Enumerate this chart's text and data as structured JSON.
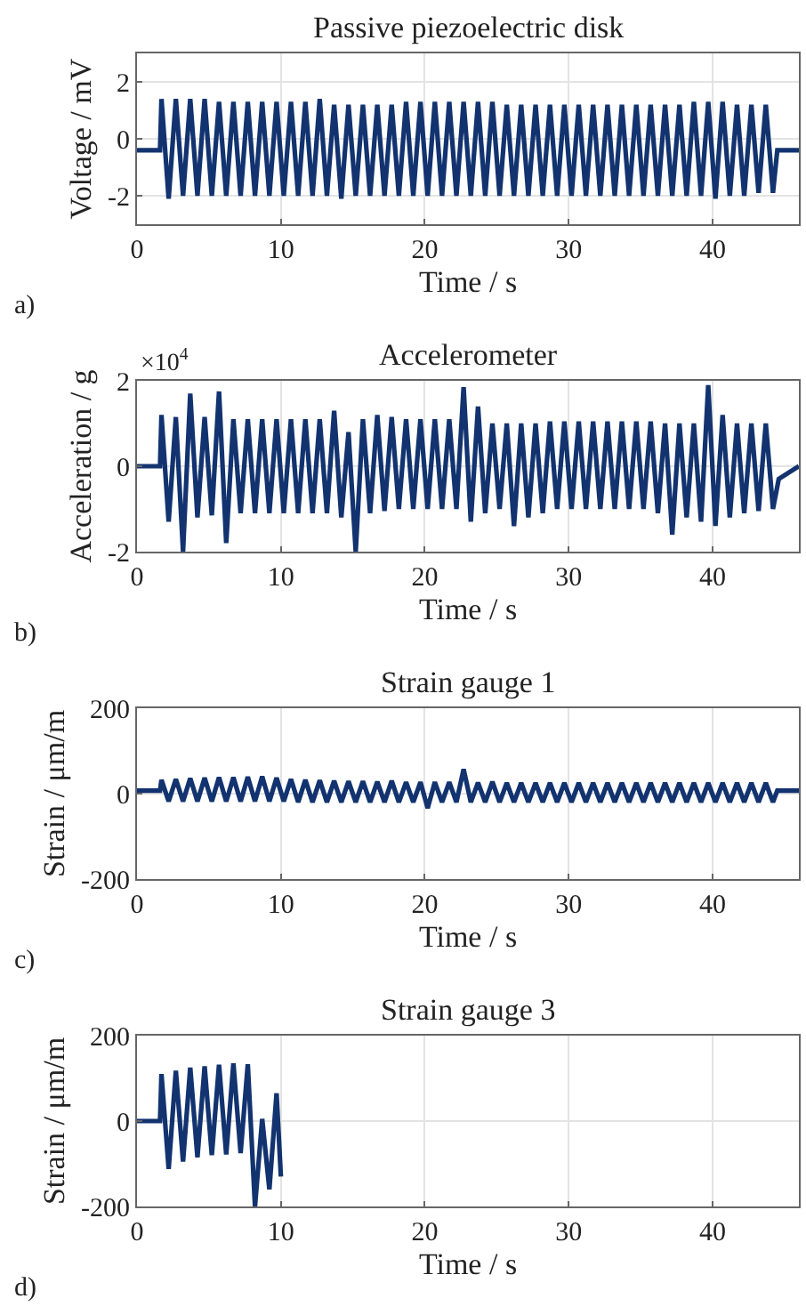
{
  "chart_data": [
    {
      "type": "line",
      "title": "Passive piezoelectric disk",
      "xlabel": "Time / s",
      "ylabel": "Voltage / mV",
      "annotations": [
        "a)"
      ],
      "xlim": [
        0,
        46
      ],
      "xticks": [
        0,
        10,
        20,
        30,
        40
      ],
      "ylim": [
        -3,
        3
      ],
      "yticks": [
        -2,
        0,
        2
      ],
      "grid": true,
      "x": [
        0,
        1.6,
        1.7,
        2.2,
        2.7,
        3.2,
        3.7,
        4.2,
        4.7,
        5.2,
        5.7,
        6.2,
        6.7,
        7.2,
        7.7,
        8.2,
        8.7,
        9.2,
        9.7,
        10.2,
        10.7,
        11.2,
        11.7,
        12.2,
        12.7,
        13.2,
        13.7,
        14.2,
        14.7,
        15.2,
        15.7,
        16.2,
        16.7,
        17.2,
        17.7,
        18.2,
        18.7,
        19.2,
        19.7,
        20.2,
        20.7,
        21.2,
        21.7,
        22.2,
        22.7,
        23.2,
        23.7,
        24.2,
        24.7,
        25.2,
        25.7,
        26.2,
        26.7,
        27.2,
        27.7,
        28.2,
        28.7,
        29.2,
        29.7,
        30.2,
        30.7,
        31.2,
        31.7,
        32.2,
        32.7,
        33.2,
        33.7,
        34.2,
        34.7,
        35.2,
        35.7,
        36.2,
        36.7,
        37.2,
        37.7,
        38.2,
        38.7,
        39.2,
        39.7,
        40.2,
        40.7,
        41.2,
        41.7,
        42.2,
        42.7,
        43.2,
        43.7,
        44.2,
        44.5,
        46
      ],
      "series": [
        {
          "color": "#12336f",
          "values": [
            -0.4,
            -0.4,
            1.4,
            -2.1,
            1.4,
            -2.0,
            1.4,
            -2.0,
            1.4,
            -2.0,
            1.3,
            -2.0,
            1.3,
            -2.0,
            1.3,
            -2.0,
            1.3,
            -2.0,
            1.3,
            -2.0,
            1.3,
            -2.0,
            1.3,
            -2.0,
            1.4,
            -2.0,
            1.2,
            -2.1,
            1.2,
            -2.0,
            1.2,
            -2.0,
            1.2,
            -2.0,
            1.2,
            -2.0,
            1.3,
            -2.0,
            1.3,
            -2.0,
            1.3,
            -2.0,
            1.3,
            -2.0,
            1.3,
            -2.0,
            1.3,
            -2.0,
            1.3,
            -2.0,
            1.2,
            -2.0,
            1.2,
            -2.0,
            1.2,
            -2.0,
            1.2,
            -2.0,
            1.2,
            -2.0,
            1.2,
            -2.0,
            1.2,
            -2.0,
            1.2,
            -2.0,
            1.2,
            -2.0,
            1.2,
            -2.0,
            1.2,
            -2.0,
            1.2,
            -2.0,
            1.2,
            -2.0,
            1.3,
            -2.0,
            1.3,
            -2.1,
            1.3,
            -2.0,
            1.2,
            -2.0,
            1.2,
            -1.9,
            1.2,
            -1.9,
            -0.4,
            -0.4
          ]
        }
      ]
    },
    {
      "type": "line",
      "title": "Accelerometer",
      "xlabel": "Time / s",
      "ylabel": "Acceleration / g",
      "annotations": [
        "b)",
        "×10$^{4}$"
      ],
      "xlim": [
        0,
        46
      ],
      "xticks": [
        0,
        10,
        20,
        30,
        40
      ],
      "ylim": [
        -2,
        2
      ],
      "yticks": [
        -2,
        0,
        2
      ],
      "grid": true,
      "x": [
        0,
        1.6,
        1.7,
        2.2,
        2.7,
        3.2,
        3.7,
        4.2,
        4.7,
        5.2,
        5.7,
        6.2,
        6.7,
        7.2,
        7.7,
        8.2,
        8.7,
        9.2,
        9.7,
        10.2,
        10.7,
        11.2,
        11.7,
        12.2,
        12.7,
        13.2,
        13.7,
        14.2,
        14.7,
        15.2,
        15.7,
        16.2,
        16.7,
        17.2,
        17.7,
        18.2,
        18.7,
        19.2,
        19.7,
        20.2,
        20.7,
        21.2,
        21.7,
        22.2,
        22.7,
        23.2,
        23.7,
        24.2,
        24.7,
        25.2,
        25.7,
        26.2,
        26.7,
        27.2,
        27.7,
        28.2,
        28.7,
        29.2,
        29.7,
        30.2,
        30.7,
        31.2,
        31.7,
        32.2,
        32.7,
        33.2,
        33.7,
        34.2,
        34.7,
        35.2,
        35.7,
        36.2,
        36.7,
        37.2,
        37.7,
        38.2,
        38.7,
        39.2,
        39.7,
        40.2,
        40.7,
        41.2,
        41.7,
        42.2,
        42.7,
        43.2,
        43.7,
        44.2,
        44.6,
        46
      ],
      "series": [
        {
          "color": "#12336f",
          "values": [
            0,
            0,
            1.2,
            -1.3,
            1.15,
            -2.0,
            1.7,
            -1.2,
            1.15,
            -1.15,
            1.75,
            -1.8,
            1.1,
            -1.1,
            1.1,
            -1.1,
            1.1,
            -1.1,
            1.1,
            -1.1,
            1.1,
            -1.1,
            1.1,
            -1.1,
            1.1,
            -1.1,
            1.3,
            -1.2,
            0.8,
            -2.0,
            1.1,
            -1.1,
            1.2,
            -1.05,
            1.15,
            -1.0,
            1.1,
            -1.0,
            1.1,
            -1.0,
            1.1,
            -1.0,
            1.1,
            -1.0,
            1.85,
            -1.3,
            1.4,
            -1.1,
            1.0,
            -1.0,
            1.0,
            -1.4,
            1.0,
            -1.2,
            1.0,
            -1.1,
            1.05,
            -1.0,
            1.05,
            -1.0,
            1.05,
            -1.0,
            1.05,
            -1.0,
            1.05,
            -1.0,
            1.05,
            -1.0,
            1.05,
            -1.0,
            1.05,
            -1.1,
            1.0,
            -1.6,
            1.0,
            -1.2,
            1.0,
            -1.3,
            1.9,
            -1.4,
            1.2,
            -1.2,
            1.0,
            -1.1,
            1.0,
            -1.05,
            1.0,
            -1.0,
            -0.3,
            0
          ]
        }
      ]
    },
    {
      "type": "line",
      "title": "Strain gauge 1",
      "xlabel": "Time / s",
      "ylabel": "Strain / μm/m",
      "annotations": [
        "c)"
      ],
      "xlim": [
        0,
        46
      ],
      "xticks": [
        0,
        10,
        20,
        30,
        40
      ],
      "ylim": [
        -200,
        200
      ],
      "yticks": [
        -200,
        0,
        200
      ],
      "grid": true,
      "x": [
        0,
        1.6,
        1.7,
        2.2,
        2.7,
        3.2,
        3.7,
        4.2,
        4.7,
        5.2,
        5.7,
        6.2,
        6.7,
        7.2,
        7.7,
        8.2,
        8.7,
        9.2,
        9.7,
        10.2,
        10.7,
        11.2,
        11.7,
        12.2,
        12.7,
        13.2,
        13.7,
        14.2,
        14.7,
        15.2,
        15.7,
        16.2,
        16.7,
        17.2,
        17.7,
        18.2,
        18.7,
        19.2,
        19.7,
        20.2,
        20.7,
        21.2,
        21.7,
        22.2,
        22.7,
        23.2,
        23.7,
        24.2,
        24.7,
        25.2,
        25.7,
        26.2,
        26.7,
        27.2,
        27.7,
        28.2,
        28.7,
        29.2,
        29.7,
        30.2,
        30.7,
        31.2,
        31.7,
        32.2,
        32.7,
        33.2,
        33.7,
        34.2,
        34.7,
        35.2,
        35.7,
        36.2,
        36.7,
        37.2,
        37.7,
        38.2,
        38.7,
        39.2,
        39.7,
        40.2,
        40.7,
        41.2,
        41.7,
        42.2,
        42.7,
        43.2,
        43.7,
        44.2,
        44.5,
        46
      ],
      "series": [
        {
          "color": "#12336f",
          "values": [
            7,
            7,
            32,
            -18,
            34,
            -18,
            36,
            -18,
            37,
            -18,
            38,
            -18,
            38,
            -18,
            39,
            -18,
            40,
            -18,
            37,
            -18,
            34,
            -20,
            32,
            -20,
            31,
            -20,
            30,
            -20,
            29,
            -20,
            29,
            -20,
            28,
            -20,
            30,
            -20,
            27,
            -20,
            27,
            -34,
            27,
            -20,
            27,
            -20,
            57,
            -20,
            26,
            -20,
            28,
            -20,
            25,
            -20,
            25,
            -20,
            25,
            -20,
            25,
            -20,
            25,
            -20,
            25,
            -20,
            25,
            -20,
            25,
            -20,
            25,
            -20,
            25,
            -20,
            25,
            -20,
            25,
            -20,
            25,
            -20,
            25,
            -20,
            25,
            -20,
            25,
            -20,
            25,
            -20,
            25,
            -20,
            25,
            -20,
            7,
            7
          ]
        }
      ]
    },
    {
      "type": "line",
      "title": "Strain gauge 3",
      "xlabel": "Time / s",
      "ylabel": "Strain / μm/m",
      "annotations": [
        "d)"
      ],
      "xlim": [
        0,
        46
      ],
      "xticks": [
        0,
        10,
        20,
        30,
        40
      ],
      "ylim": [
        -200,
        200
      ],
      "yticks": [
        -200,
        0,
        200
      ],
      "grid": true,
      "x": [
        0,
        1.6,
        1.7,
        2.2,
        2.7,
        3.2,
        3.7,
        4.2,
        4.7,
        5.2,
        5.7,
        6.2,
        6.7,
        7.2,
        7.7,
        8.2,
        8.7,
        9.2,
        9.7,
        10.0
      ],
      "series": [
        {
          "color": "#12336f",
          "values": [
            0,
            0,
            110,
            -112,
            118,
            -95,
            125,
            -85,
            128,
            -80,
            132,
            -78,
            135,
            -75,
            133,
            -200,
            5,
            -160,
            65,
            -130
          ]
        }
      ]
    }
  ]
}
